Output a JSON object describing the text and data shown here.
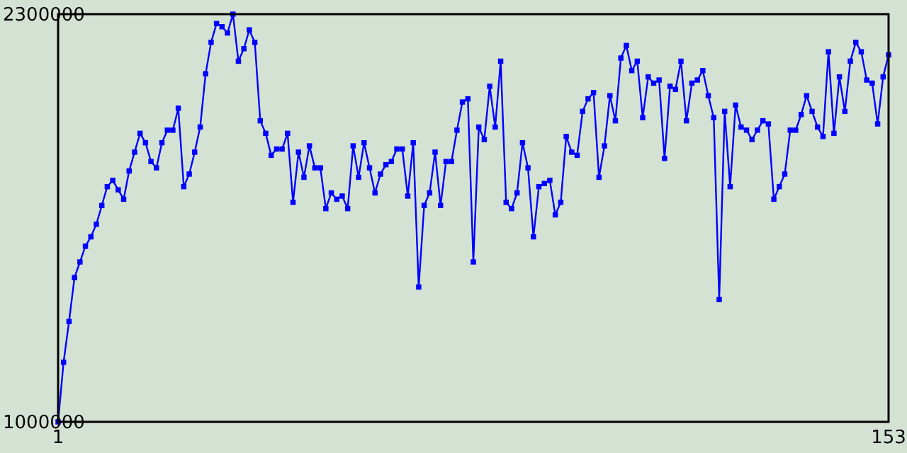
{
  "chart_data": {
    "type": "line",
    "marker": "square",
    "categories": [
      "1",
      null,
      null,
      null,
      null,
      null,
      null,
      null,
      null,
      null,
      null,
      null,
      null,
      null,
      null,
      null,
      null,
      null,
      null,
      null,
      null,
      null,
      null,
      null,
      null,
      null,
      null,
      null,
      null,
      null,
      null,
      null,
      null,
      null,
      null,
      null,
      null,
      null,
      null,
      null,
      null,
      null,
      null,
      null,
      null,
      null,
      null,
      null,
      null,
      null,
      null,
      null,
      null,
      null,
      null,
      null,
      null,
      null,
      null,
      null,
      null,
      null,
      null,
      null,
      null,
      null,
      null,
      null,
      null,
      null,
      null,
      null,
      null,
      null,
      null,
      null,
      null,
      null,
      null,
      null,
      null,
      null,
      null,
      null,
      null,
      null,
      null,
      null,
      null,
      null,
      null,
      null,
      null,
      null,
      null,
      null,
      null,
      null,
      null,
      null,
      null,
      null,
      null,
      null,
      null,
      null,
      null,
      null,
      null,
      null,
      null,
      null,
      null,
      null,
      null,
      null,
      null,
      null,
      null,
      null,
      null,
      null,
      null,
      null,
      null,
      null,
      null,
      null,
      null,
      null,
      null,
      null,
      null,
      null,
      null,
      null,
      null,
      null,
      null,
      null,
      null,
      null,
      null,
      null,
      null,
      null,
      null,
      null,
      null,
      null,
      null,
      null,
      "153"
    ],
    "ylim": [
      1000000,
      2300000
    ],
    "yticks": [
      1000000,
      2300000
    ],
    "series": [
      {
        "color": "#0000ff",
        "values": [
          1000000,
          1190000,
          1320000,
          1460000,
          1510000,
          1560000,
          1590000,
          1630000,
          1690000,
          1750000,
          1770000,
          1740000,
          1710000,
          1800000,
          1860000,
          1920000,
          1890000,
          1830000,
          1810000,
          1890000,
          1930000,
          1930000,
          2000000,
          1750000,
          1790000,
          1860000,
          1940000,
          2110000,
          2210000,
          2270000,
          2260000,
          2240000,
          2300000,
          2150000,
          2190000,
          2250000,
          2210000,
          1960000,
          1920000,
          1850000,
          1870000,
          1870000,
          1920000,
          1700000,
          1860000,
          1780000,
          1880000,
          1810000,
          1810000,
          1680000,
          1730000,
          1710000,
          1720000,
          1680000,
          1880000,
          1780000,
          1890000,
          1810000,
          1730000,
          1790000,
          1820000,
          1830000,
          1870000,
          1870000,
          1720000,
          1890000,
          1430000,
          1690000,
          1730000,
          1860000,
          1690000,
          1830000,
          1830000,
          1930000,
          2020000,
          2030000,
          1510000,
          1940000,
          1900000,
          2070000,
          1940000,
          2150000,
          1700000,
          1680000,
          1730000,
          1890000,
          1810000,
          1590000,
          1750000,
          1760000,
          1770000,
          1660000,
          1700000,
          1910000,
          1860000,
          1850000,
          1990000,
          2030000,
          2050000,
          1780000,
          1880000,
          2040000,
          1960000,
          2160000,
          2200000,
          2120000,
          2150000,
          1970000,
          2100000,
          2080000,
          2090000,
          1840000,
          2070000,
          2060000,
          2150000,
          1960000,
          2080000,
          2090000,
          2120000,
          2040000,
          1970000,
          1390000,
          1990000,
          1750000,
          2010000,
          1940000,
          1930000,
          1900000,
          1930000,
          1960000,
          1950000,
          1710000,
          1750000,
          1790000,
          1930000,
          1930000,
          1980000,
          2040000,
          1990000,
          1940000,
          1910000,
          2180000,
          1920000,
          2100000,
          1990000,
          2150000,
          2210000,
          2180000,
          2090000,
          2080000,
          1950000,
          2100000,
          2170000
        ]
      }
    ]
  }
}
